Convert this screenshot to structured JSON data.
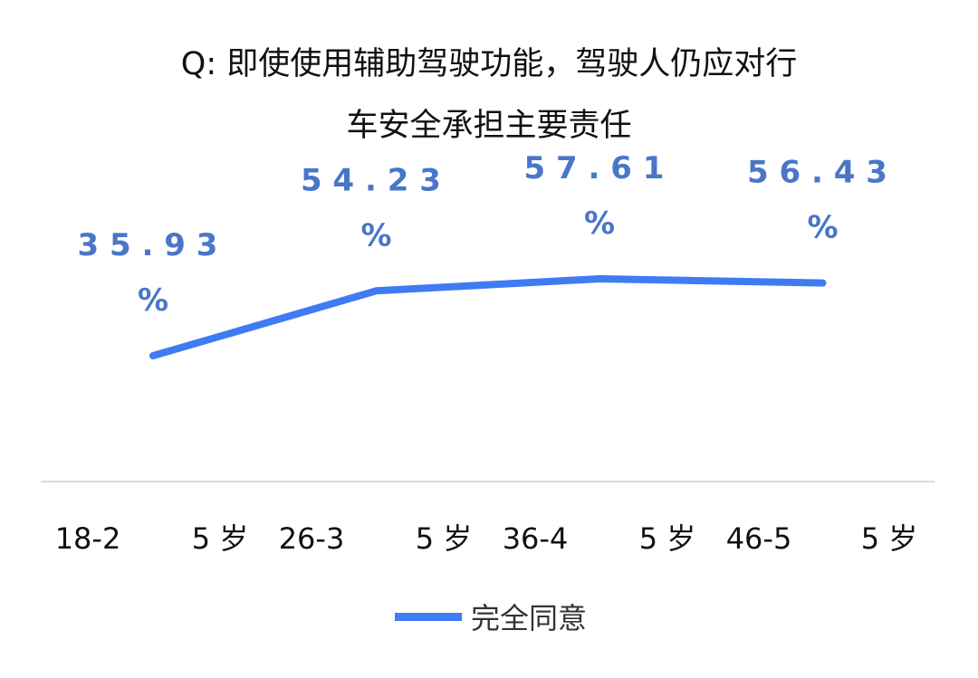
{
  "chart_data": {
    "type": "line",
    "title_line1": "Q:   即使使用辅助驾驶功能，驾驶人仍应对行",
    "title_line2": "车安全承担主要责任",
    "categories": [
      "18-25岁",
      "26-35岁",
      "36-45岁",
      "46-55岁"
    ],
    "tick_labels": [
      "18-2",
      "5  岁",
      "26-3",
      "5  岁",
      "36-4",
      "5  岁",
      "46-5",
      "5  岁"
    ],
    "series": [
      {
        "name": "完全同意",
        "values": [
          35.93,
          54.23,
          57.61,
          56.43
        ],
        "label_numbers": [
          "3 5 . 9 3",
          "5 4 . 2 3",
          "5 7 . 6 1",
          "5 6 . 4 3"
        ],
        "label_unit": "%"
      }
    ],
    "ylim": [
      0,
      100
    ],
    "grid": false,
    "legend_position": "bottom",
    "line_color": "#3f7bf3",
    "label_color": "#4a76c8"
  }
}
